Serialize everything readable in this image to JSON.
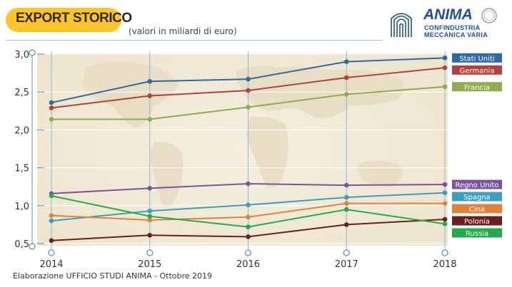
{
  "header": {
    "title": "EXPORT STORICO",
    "subtitle": "(valori in miliardi di euro)"
  },
  "logo": {
    "name": "ANIMA",
    "line1": "CONFINDUSTRIA",
    "line2": "MECCANICA VARIA",
    "seal_text": "ANIMA",
    "color": "#1f4e9c"
  },
  "footer": {
    "source": "Elaborazione UFFICIO STUDI ANIMA - Ottobre 2019"
  },
  "chart_data": {
    "type": "line",
    "title": "",
    "xlabel": "",
    "ylabel": "",
    "x": [
      "2014",
      "2015",
      "2016",
      "2017",
      "2018"
    ],
    "ylim": [
      0.5,
      3.0
    ],
    "yticks": [
      "0,5",
      "1,0",
      "1,5",
      "2,0",
      "2,5",
      "3,0"
    ],
    "grid": true,
    "legend": "right",
    "series": [
      {
        "name": "Stati Uniti",
        "color": "#2f6aa6",
        "values": [
          2.36,
          2.64,
          2.67,
          2.9,
          2.95
        ]
      },
      {
        "name": "Germania",
        "color": "#b5413c",
        "values": [
          2.29,
          2.45,
          2.52,
          2.69,
          2.82
        ]
      },
      {
        "name": "Francia",
        "color": "#8fad4c",
        "values": [
          2.14,
          2.14,
          2.3,
          2.47,
          2.57
        ]
      },
      {
        "name": "Regno Unito",
        "color": "#7b53a0",
        "values": [
          1.16,
          1.23,
          1.29,
          1.27,
          1.28
        ]
      },
      {
        "name": "Spagna",
        "color": "#3b9fbf",
        "values": [
          0.8,
          0.93,
          1.01,
          1.11,
          1.17
        ]
      },
      {
        "name": "Cina",
        "color": "#e2823a",
        "values": [
          0.87,
          0.81,
          0.85,
          1.03,
          1.03
        ]
      },
      {
        "name": "Polonia",
        "color": "#6e1d1d",
        "values": [
          0.54,
          0.61,
          0.59,
          0.75,
          0.82
        ]
      },
      {
        "name": "Russia",
        "color": "#22ad4a",
        "values": [
          1.13,
          0.86,
          0.72,
          0.95,
          0.76
        ]
      }
    ]
  }
}
